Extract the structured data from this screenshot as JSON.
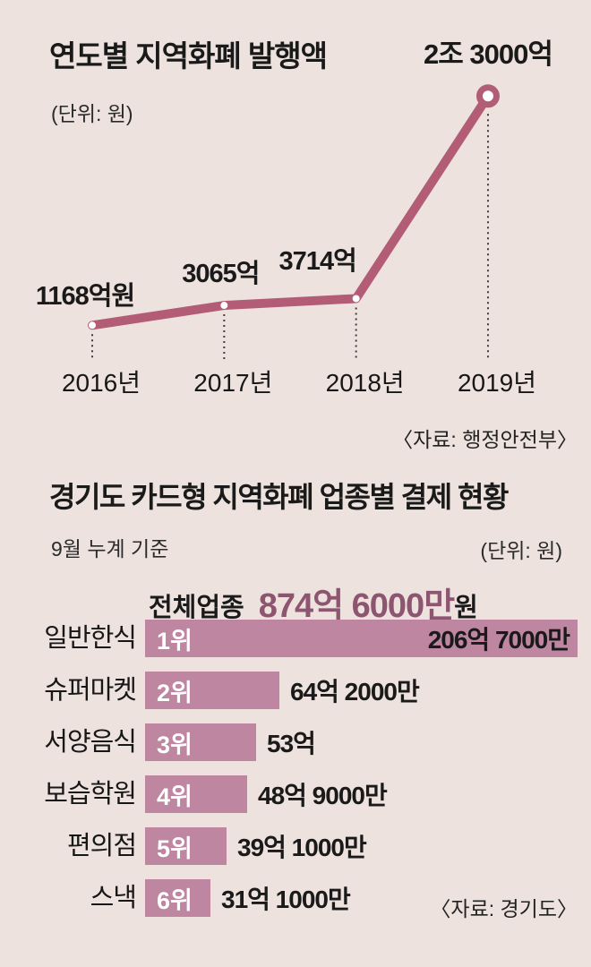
{
  "colors": {
    "background": "#EDE2DD",
    "line": "#B25C76",
    "bar": "#BE86A0",
    "accent_text": "#8E5571",
    "text": "#1A1A1A",
    "dotted": "#3D3D3D"
  },
  "chart_data": [
    {
      "type": "line",
      "title": "연도별 지역화폐 발행액",
      "unit_note": "(단위: 원)",
      "x": [
        "2016년",
        "2017년",
        "2018년",
        "2019년"
      ],
      "values_eok": [
        1168,
        3065,
        3714,
        23000
      ],
      "point_labels": [
        "1168억원",
        "3065억",
        "3714억",
        "2조 3000억"
      ],
      "source": "〈자료: 행정안전부〉",
      "layout_hint": "single rose line, white dot markers, hollow ring on last point, dotted droplines to year labels, no axes/grid"
    },
    {
      "type": "bar",
      "title": "경기도 카드형 지역화폐 업종별 결제 현황",
      "basis_note": "9월 누계 기준",
      "unit_note": "(단위: 원)",
      "total_label": "전체업종",
      "total_value": "874억 6000만",
      "total_suffix": "원",
      "categories": [
        "일반한식",
        "슈퍼마켓",
        "서양음식",
        "보습학원",
        "편의점",
        "스낵"
      ],
      "ranks": [
        "1위",
        "2위",
        "3위",
        "4위",
        "5위",
        "6위"
      ],
      "values_eok": [
        206.7,
        64.2,
        53,
        48.9,
        39.1,
        31.1
      ],
      "value_labels": [
        "206억 7000만",
        "64억 2000만",
        "53억",
        "48억 9000만",
        "39억 1000만",
        "31억 1000만"
      ],
      "source": "〈자료: 경기도〉",
      "layout_hint": "horizontal mauve bars, rank label white inside-left, value of rank1 inside-right, other values outside-right"
    }
  ]
}
